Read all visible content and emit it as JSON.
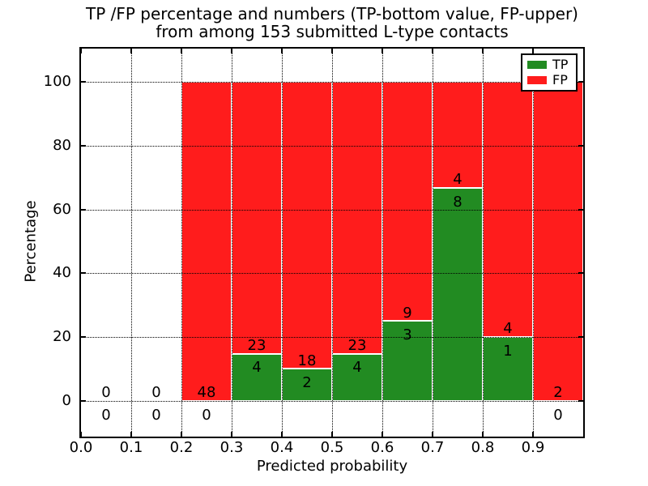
{
  "title": {
    "line1": "TP /FP percentage and numbers (TP-bottom value, FP-upper)",
    "line2": "from among 153 submitted L-type contacts"
  },
  "x_axis": {
    "label": "Predicted probability",
    "ticks": [
      "0.0",
      "0.1",
      "0.2",
      "0.3",
      "0.4",
      "0.5",
      "0.6",
      "0.7",
      "0.8",
      "0.9"
    ]
  },
  "y_axis": {
    "label": "Percentage",
    "ticks": [
      "0",
      "20",
      "40",
      "60",
      "80",
      "100"
    ],
    "tick_values": [
      0,
      20,
      40,
      60,
      80,
      100
    ]
  },
  "legend": {
    "items": [
      {
        "label": "TP",
        "color": "#228B22"
      },
      {
        "label": "FP",
        "color": "#FF1C1C"
      }
    ]
  },
  "colors": {
    "tp": "#228B22",
    "fp": "#FF1C1C",
    "bar_edge": "#FFFFFF",
    "grid": "#000000",
    "background": "#FFFFFF",
    "text": "#000000"
  },
  "chart_data": {
    "type": "bar",
    "stacked": true,
    "title": "TP /FP percentage and numbers (TP-bottom value, FP-upper) from among 153 submitted L-type contacts",
    "xlabel": "Predicted probability",
    "ylabel": "Percentage",
    "xlim": [
      0.0,
      1.0
    ],
    "ylim": [
      -11.2,
      110.4
    ],
    "grid": true,
    "legend_position": "upper right",
    "total_contacts": 153,
    "bin_width": 0.1,
    "series": [
      {
        "name": "TP",
        "color": "#228B22",
        "counts": [
          0,
          0,
          0,
          4,
          2,
          4,
          3,
          8,
          1,
          0
        ]
      },
      {
        "name": "FP",
        "color": "#FF1C1C",
        "counts": [
          0,
          0,
          48,
          23,
          18,
          23,
          9,
          4,
          4,
          2
        ]
      }
    ],
    "bins": [
      {
        "x_start": 0.0,
        "x_end": 0.1,
        "tp": 0,
        "fp": 0,
        "tp_pct": 0,
        "fp_pct": 0
      },
      {
        "x_start": 0.1,
        "x_end": 0.2,
        "tp": 0,
        "fp": 0,
        "tp_pct": 0,
        "fp_pct": 0
      },
      {
        "x_start": 0.2,
        "x_end": 0.3,
        "tp": 0,
        "fp": 48,
        "tp_pct": 0,
        "fp_pct": 100
      },
      {
        "x_start": 0.3,
        "x_end": 0.4,
        "tp": 4,
        "fp": 23,
        "tp_pct": 14.81,
        "fp_pct": 85.19
      },
      {
        "x_start": 0.4,
        "x_end": 0.5,
        "tp": 2,
        "fp": 18,
        "tp_pct": 10.0,
        "fp_pct": 90.0
      },
      {
        "x_start": 0.5,
        "x_end": 0.6,
        "tp": 4,
        "fp": 23,
        "tp_pct": 14.81,
        "fp_pct": 85.19
      },
      {
        "x_start": 0.6,
        "x_end": 0.7,
        "tp": 3,
        "fp": 9,
        "tp_pct": 25.0,
        "fp_pct": 75.0
      },
      {
        "x_start": 0.7,
        "x_end": 0.8,
        "tp": 8,
        "fp": 4,
        "tp_pct": 66.67,
        "fp_pct": 33.33
      },
      {
        "x_start": 0.8,
        "x_end": 0.9,
        "tp": 1,
        "fp": 4,
        "tp_pct": 20.0,
        "fp_pct": 80.0
      },
      {
        "x_start": 0.9,
        "x_end": 1.0,
        "tp": 0,
        "fp": 2,
        "tp_pct": 0,
        "fp_pct": 100
      }
    ]
  }
}
